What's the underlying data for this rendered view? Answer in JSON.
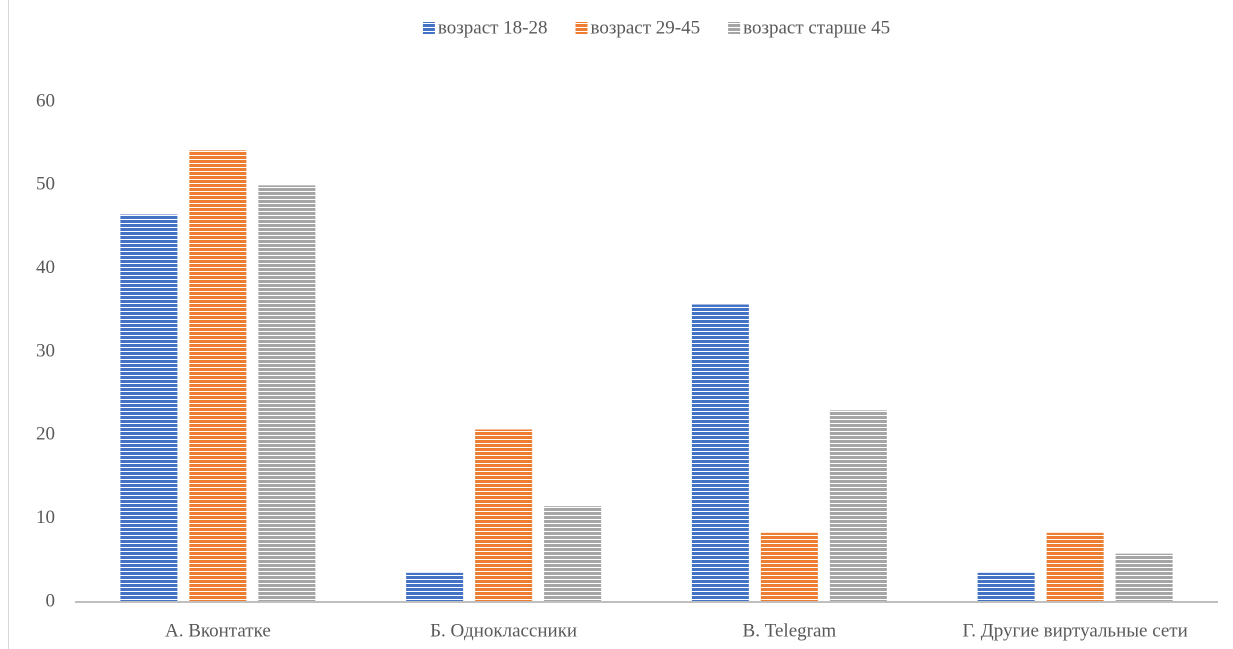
{
  "chart_data": {
    "type": "bar",
    "categories": [
      "А. Вконтатке",
      "Б. Одноклассники",
      "В. Telegram",
      "Г. Другие виртуальные сети"
    ],
    "series": [
      {
        "name": "возраст 18-28",
        "color": "#4472c4",
        "values": [
          46.5,
          3.5,
          35.7,
          3.5
        ]
      },
      {
        "name": "возраст 29-45",
        "color": "#ed7d31",
        "values": [
          54.2,
          20.7,
          8.3,
          8.3
        ]
      },
      {
        "name": "возраст старше 45",
        "color": "#a5a5a5",
        "values": [
          50,
          11.5,
          23,
          5.8
        ]
      }
    ],
    "ylim": [
      0,
      60
    ],
    "yticks": [
      0,
      10,
      20,
      30,
      40,
      50,
      60
    ],
    "grid": false,
    "legend": "top"
  }
}
